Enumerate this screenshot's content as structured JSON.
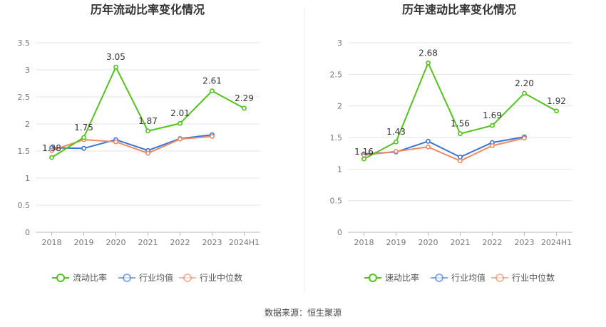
{
  "chart_data": [
    {
      "type": "line",
      "title": "历年流动比率变化情况",
      "categories": [
        "2018",
        "2019",
        "2020",
        "2021",
        "2022",
        "2023",
        "2024H1"
      ],
      "yticks": [
        "0",
        "0.5",
        "1",
        "1.5",
        "2",
        "2.5",
        "3",
        "3.5"
      ],
      "ylim": [
        0,
        3.5
      ],
      "grid": true,
      "legend_position": "bottom",
      "series": [
        {
          "name": "流动比率",
          "color": "#52c41a",
          "values": [
            1.38,
            1.75,
            3.05,
            1.87,
            2.01,
            2.61,
            2.29
          ],
          "labels": [
            "1.38",
            "1.75",
            "3.05",
            "1.87",
            "2.01",
            "2.61",
            "2.29"
          ]
        },
        {
          "name": "行业均值",
          "color": "#3a73d8",
          "values": [
            1.56,
            1.55,
            1.71,
            1.51,
            1.73,
            1.8,
            null
          ]
        },
        {
          "name": "行业中位数",
          "color": "#f08a62",
          "values": [
            1.51,
            1.71,
            1.67,
            1.46,
            1.72,
            1.77,
            null
          ]
        }
      ]
    },
    {
      "type": "line",
      "title": "历年速动比率变化情况",
      "categories": [
        "2018",
        "2019",
        "2020",
        "2021",
        "2022",
        "2023",
        "2024H1"
      ],
      "yticks": [
        "0",
        "0.5",
        "1",
        "1.5",
        "2",
        "2.5",
        "3"
      ],
      "ylim": [
        0,
        3
      ],
      "grid": true,
      "legend_position": "bottom",
      "series": [
        {
          "name": "速动比率",
          "color": "#52c41a",
          "values": [
            1.16,
            1.43,
            2.68,
            1.56,
            1.69,
            2.2,
            1.92
          ],
          "labels": [
            "1.16",
            "1.43",
            "2.68",
            "1.56",
            "1.69",
            "2.20",
            "1.92"
          ]
        },
        {
          "name": "行业均值",
          "color": "#3a73d8",
          "values": [
            1.24,
            1.27,
            1.44,
            1.19,
            1.42,
            1.51,
            null
          ]
        },
        {
          "name": "行业中位数",
          "color": "#f08a62",
          "values": [
            1.22,
            1.28,
            1.35,
            1.13,
            1.37,
            1.49,
            null
          ]
        }
      ]
    }
  ],
  "footer": {
    "source": "数据来源：恒生聚源"
  }
}
